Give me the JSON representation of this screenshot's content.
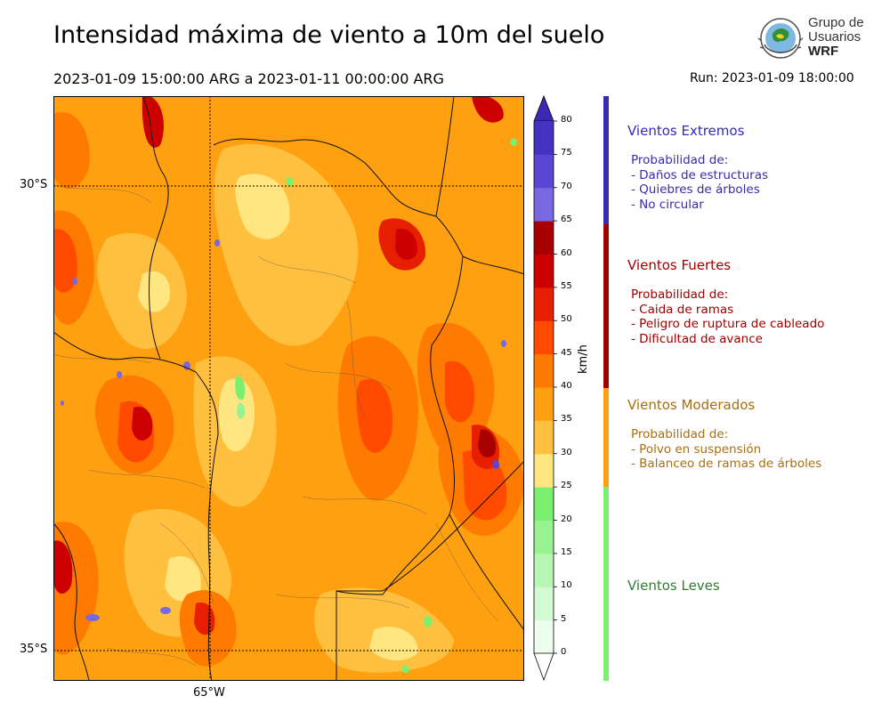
{
  "header": {
    "title": "Intensidad máxima de viento a 10m del suelo",
    "range": "2023-01-09 15:00:00 ARG  a  2023-01-11 00:00:00 ARG",
    "run": "Run: 2023-01-09 18:00:00"
  },
  "logo": {
    "line1": "Grupo de",
    "line2": "Usuarios",
    "line3": "WRF"
  },
  "map": {
    "lat_labels": [
      "30°S",
      "35°S"
    ],
    "lon_labels": [
      "65°W"
    ]
  },
  "colorbar": {
    "unit": "km/h",
    "ticks": [
      "0",
      "5",
      "10",
      "15",
      "20",
      "25",
      "30",
      "35",
      "40",
      "45",
      "50",
      "55",
      "60",
      "65",
      "70",
      "75",
      "80"
    ],
    "colors": [
      "#eefeee",
      "#d3fbd3",
      "#b8f7b3",
      "#98f291",
      "#7bef6f",
      "#ffe680",
      "#ffc040",
      "#ffa010",
      "#ff7a00",
      "#ff4a00",
      "#e81e00",
      "#cc0000",
      "#a80000",
      "#7a68e0",
      "#5a46d0",
      "#4632c0"
    ],
    "under_color": "#ffffff",
    "over_color": "#3c28b4"
  },
  "categories": [
    {
      "title": "Vientos Extremos",
      "color": "#3a2ab0",
      "lines": [
        "Probabilidad de:",
        "- Daños de estructuras",
        "- Quiebres de árboles",
        "- No circular"
      ]
    },
    {
      "title": "Vientos Fuertes",
      "color": "#a00000",
      "lines": [
        "Probabilidad de:",
        "- Caida de ramas",
        "- Peligro de ruptura de cableado",
        "- Dificultad de avance"
      ]
    },
    {
      "title": "Vientos Moderados",
      "color": "#a86f0f",
      "lines": [
        "Probabilidad de:",
        "- Polvo en suspensión",
        "- Balanceo de ramas de árboles"
      ]
    },
    {
      "title": "Vientos Leves",
      "color": "#2e7d32",
      "lines": []
    }
  ],
  "category_bar_colors": [
    "#3a2ab0",
    "#a00000",
    "#ffa010",
    "#7bef6f"
  ]
}
